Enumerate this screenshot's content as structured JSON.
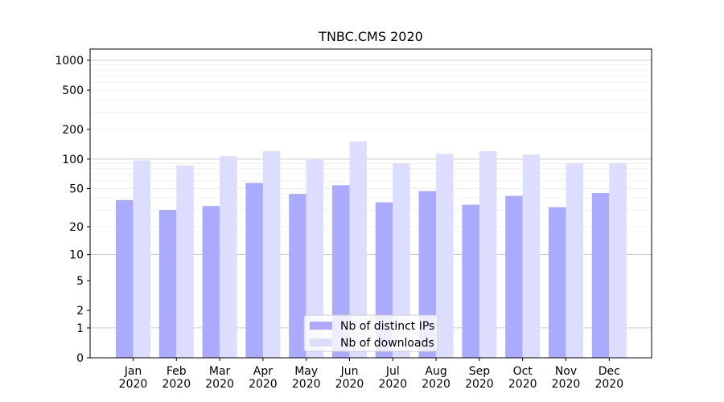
{
  "chart_data": {
    "type": "bar",
    "title": "TNBC.CMS 2020",
    "xlabel": "",
    "ylabel": "",
    "yscale": "symlog",
    "ylim": [
      0,
      1300
    ],
    "grid": true,
    "legend_position": "lower center",
    "categories": [
      "Jan\n2020",
      "Feb\n2020",
      "Mar\n2020",
      "Apr\n2020",
      "May\n2020",
      "Jun\n2020",
      "Jul\n2020",
      "Aug\n2020",
      "Sep\n2020",
      "Oct\n2020",
      "Nov\n2020",
      "Dec\n2020"
    ],
    "y_ticks": [
      0,
      1,
      2,
      5,
      10,
      20,
      50,
      100,
      200,
      500,
      1000
    ],
    "series": [
      {
        "name": "Nb of distinct IPs",
        "color": "#aaaaff",
        "values": [
          38,
          30,
          33,
          57,
          44,
          54,
          36,
          47,
          34,
          42,
          32,
          45
        ]
      },
      {
        "name": "Nb of downloads",
        "color": "#ddddff",
        "values": [
          97,
          86,
          107,
          121,
          100,
          151,
          91,
          113,
          120,
          111,
          91,
          91
        ]
      }
    ]
  }
}
